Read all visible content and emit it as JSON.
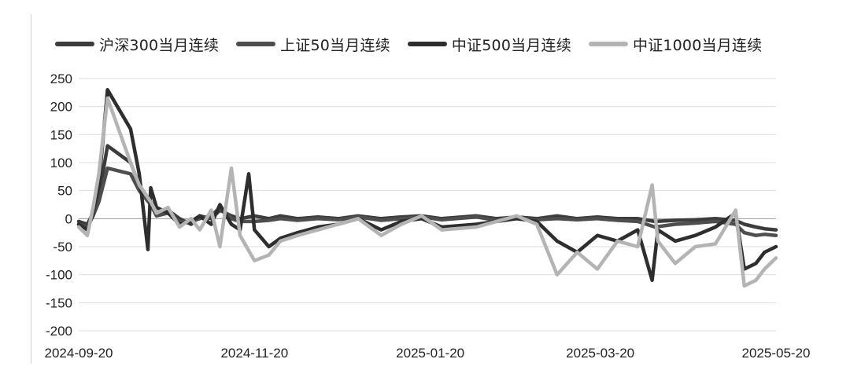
{
  "chart_data": {
    "type": "line",
    "title": "",
    "xlabel": "",
    "ylabel": "",
    "ylim": [
      -200,
      250
    ],
    "yticks": [
      250,
      200,
      150,
      100,
      50,
      0,
      -50,
      -100,
      -150,
      -200
    ],
    "xticks": [
      "2024-09-20",
      "2024-11-20",
      "2025-01-20",
      "2025-03-20",
      "2025-05-20"
    ],
    "xlim": [
      "2024-09-20",
      "2025-05-20"
    ],
    "grid": "horizontal",
    "legend_position": "top",
    "series": [
      {
        "name": "沪深300当月连续",
        "color": "#3c3c3c",
        "points": [
          [
            "2024-09-20",
            -5
          ],
          [
            "2024-09-23",
            -10
          ],
          [
            "2024-09-25",
            10
          ],
          [
            "2024-09-27",
            40
          ],
          [
            "2024-09-30",
            130
          ],
          [
            "2024-10-08",
            100
          ],
          [
            "2024-10-11",
            60
          ],
          [
            "2024-10-15",
            30
          ],
          [
            "2024-10-17",
            10
          ],
          [
            "2024-10-21",
            15
          ],
          [
            "2024-10-25",
            0
          ],
          [
            "2024-10-29",
            -10
          ],
          [
            "2024-11-01",
            5
          ],
          [
            "2024-11-05",
            0
          ],
          [
            "2024-11-08",
            15
          ],
          [
            "2024-11-12",
            5
          ],
          [
            "2024-11-15",
            0
          ],
          [
            "2024-11-20",
            5
          ],
          [
            "2024-11-25",
            0
          ],
          [
            "2024-11-29",
            5
          ],
          [
            "2024-12-05",
            0
          ],
          [
            "2024-12-12",
            3
          ],
          [
            "2024-12-19",
            0
          ],
          [
            "2024-12-26",
            5
          ],
          [
            "2025-01-03",
            0
          ],
          [
            "2025-01-10",
            3
          ],
          [
            "2025-01-17",
            5
          ],
          [
            "2025-01-24",
            0
          ],
          [
            "2025-02-05",
            5
          ],
          [
            "2025-02-12",
            0
          ],
          [
            "2025-02-19",
            3
          ],
          [
            "2025-02-26",
            0
          ],
          [
            "2025-03-05",
            5
          ],
          [
            "2025-03-12",
            0
          ],
          [
            "2025-03-19",
            3
          ],
          [
            "2025-03-26",
            0
          ],
          [
            "2025-04-02",
            0
          ],
          [
            "2025-04-08",
            -5
          ],
          [
            "2025-04-15",
            -3
          ],
          [
            "2025-04-22",
            -2
          ],
          [
            "2025-04-29",
            0
          ],
          [
            "2025-05-06",
            -3
          ],
          [
            "2025-05-09",
            -10
          ],
          [
            "2025-05-13",
            -15
          ],
          [
            "2025-05-16",
            -18
          ],
          [
            "2025-05-20",
            -20
          ]
        ]
      },
      {
        "name": "上证50当月连续",
        "color": "#4e4e4e",
        "points": [
          [
            "2024-09-20",
            -10
          ],
          [
            "2024-09-23",
            -15
          ],
          [
            "2024-09-25",
            5
          ],
          [
            "2024-09-27",
            30
          ],
          [
            "2024-09-30",
            90
          ],
          [
            "2024-10-08",
            80
          ],
          [
            "2024-10-11",
            50
          ],
          [
            "2024-10-15",
            25
          ],
          [
            "2024-10-17",
            5
          ],
          [
            "2024-10-21",
            10
          ],
          [
            "2024-10-25",
            -5
          ],
          [
            "2024-10-29",
            -5
          ],
          [
            "2024-11-01",
            0
          ],
          [
            "2024-11-05",
            5
          ],
          [
            "2024-11-08",
            20
          ],
          [
            "2024-11-12",
            0
          ],
          [
            "2024-11-15",
            -5
          ],
          [
            "2024-11-20",
            -5
          ],
          [
            "2024-11-25",
            -3
          ],
          [
            "2024-11-29",
            0
          ],
          [
            "2024-12-05",
            -3
          ],
          [
            "2024-12-12",
            0
          ],
          [
            "2024-12-19",
            -2
          ],
          [
            "2024-12-26",
            3
          ],
          [
            "2025-01-03",
            -3
          ],
          [
            "2025-01-10",
            0
          ],
          [
            "2025-01-17",
            3
          ],
          [
            "2025-01-24",
            -2
          ],
          [
            "2025-02-05",
            3
          ],
          [
            "2025-02-12",
            -3
          ],
          [
            "2025-02-19",
            0
          ],
          [
            "2025-02-26",
            -2
          ],
          [
            "2025-03-05",
            0
          ],
          [
            "2025-03-12",
            -2
          ],
          [
            "2025-03-19",
            0
          ],
          [
            "2025-03-26",
            -3
          ],
          [
            "2025-04-02",
            -5
          ],
          [
            "2025-04-08",
            -15
          ],
          [
            "2025-04-15",
            -10
          ],
          [
            "2025-04-22",
            -8
          ],
          [
            "2025-04-29",
            -5
          ],
          [
            "2025-05-06",
            -10
          ],
          [
            "2025-05-09",
            -25
          ],
          [
            "2025-05-13",
            -30
          ],
          [
            "2025-05-16",
            -28
          ],
          [
            "2025-05-20",
            -30
          ]
        ]
      },
      {
        "name": "中证500当月连续",
        "color": "#2e2e2e",
        "points": [
          [
            "2024-09-20",
            -10
          ],
          [
            "2024-09-23",
            -20
          ],
          [
            "2024-09-25",
            10
          ],
          [
            "2024-09-27",
            60
          ],
          [
            "2024-09-30",
            230
          ],
          [
            "2024-10-08",
            160
          ],
          [
            "2024-10-11",
            80
          ],
          [
            "2024-10-14",
            -55
          ],
          [
            "2024-10-15",
            55
          ],
          [
            "2024-10-17",
            20
          ],
          [
            "2024-10-21",
            10
          ],
          [
            "2024-10-25",
            -10
          ],
          [
            "2024-10-29",
            -5
          ],
          [
            "2024-11-01",
            5
          ],
          [
            "2024-11-05",
            -10
          ],
          [
            "2024-11-08",
            25
          ],
          [
            "2024-11-12",
            -10
          ],
          [
            "2024-11-15",
            -20
          ],
          [
            "2024-11-18",
            80
          ],
          [
            "2024-11-20",
            -20
          ],
          [
            "2024-11-25",
            -50
          ],
          [
            "2024-11-29",
            -35
          ],
          [
            "2024-12-05",
            -25
          ],
          [
            "2024-12-12",
            -15
          ],
          [
            "2024-12-19",
            -10
          ],
          [
            "2024-12-26",
            0
          ],
          [
            "2025-01-03",
            -20
          ],
          [
            "2025-01-10",
            -5
          ],
          [
            "2025-01-17",
            0
          ],
          [
            "2025-01-24",
            -15
          ],
          [
            "2025-02-05",
            -10
          ],
          [
            "2025-02-12",
            -5
          ],
          [
            "2025-02-19",
            0
          ],
          [
            "2025-02-26",
            -5
          ],
          [
            "2025-03-05",
            -40
          ],
          [
            "2025-03-12",
            -60
          ],
          [
            "2025-03-19",
            -30
          ],
          [
            "2025-03-26",
            -40
          ],
          [
            "2025-04-02",
            -20
          ],
          [
            "2025-04-07",
            -110
          ],
          [
            "2025-04-09",
            -20
          ],
          [
            "2025-04-15",
            -40
          ],
          [
            "2025-04-22",
            -30
          ],
          [
            "2025-04-29",
            -15
          ],
          [
            "2025-05-06",
            10
          ],
          [
            "2025-05-09",
            -90
          ],
          [
            "2025-05-13",
            -80
          ],
          [
            "2025-05-16",
            -60
          ],
          [
            "2025-05-20",
            -50
          ]
        ]
      },
      {
        "name": "中证1000当月连续",
        "color": "#b4b4b4",
        "points": [
          [
            "2024-09-20",
            -15
          ],
          [
            "2024-09-23",
            -30
          ],
          [
            "2024-09-25",
            20
          ],
          [
            "2024-09-27",
            80
          ],
          [
            "2024-09-30",
            215
          ],
          [
            "2024-10-08",
            100
          ],
          [
            "2024-10-11",
            60
          ],
          [
            "2024-10-15",
            30
          ],
          [
            "2024-10-17",
            10
          ],
          [
            "2024-10-21",
            20
          ],
          [
            "2024-10-25",
            -15
          ],
          [
            "2024-10-29",
            0
          ],
          [
            "2024-11-01",
            -20
          ],
          [
            "2024-11-05",
            15
          ],
          [
            "2024-11-08",
            -50
          ],
          [
            "2024-11-12",
            90
          ],
          [
            "2024-11-15",
            -30
          ],
          [
            "2024-11-20",
            -75
          ],
          [
            "2024-11-25",
            -65
          ],
          [
            "2024-11-29",
            -40
          ],
          [
            "2024-12-05",
            -30
          ],
          [
            "2024-12-12",
            -20
          ],
          [
            "2024-12-19",
            -10
          ],
          [
            "2024-12-26",
            0
          ],
          [
            "2025-01-03",
            -30
          ],
          [
            "2025-01-10",
            -10
          ],
          [
            "2025-01-17",
            5
          ],
          [
            "2025-01-24",
            -20
          ],
          [
            "2025-02-05",
            -15
          ],
          [
            "2025-02-12",
            -5
          ],
          [
            "2025-02-19",
            5
          ],
          [
            "2025-02-26",
            -10
          ],
          [
            "2025-03-05",
            -100
          ],
          [
            "2025-03-12",
            -60
          ],
          [
            "2025-03-19",
            -90
          ],
          [
            "2025-03-26",
            -40
          ],
          [
            "2025-04-02",
            -50
          ],
          [
            "2025-04-07",
            60
          ],
          [
            "2025-04-09",
            -40
          ],
          [
            "2025-04-15",
            -80
          ],
          [
            "2025-04-22",
            -50
          ],
          [
            "2025-04-29",
            -45
          ],
          [
            "2025-05-06",
            15
          ],
          [
            "2025-05-09",
            -120
          ],
          [
            "2025-05-13",
            -110
          ],
          [
            "2025-05-16",
            -90
          ],
          [
            "2025-05-20",
            -70
          ]
        ]
      }
    ]
  }
}
